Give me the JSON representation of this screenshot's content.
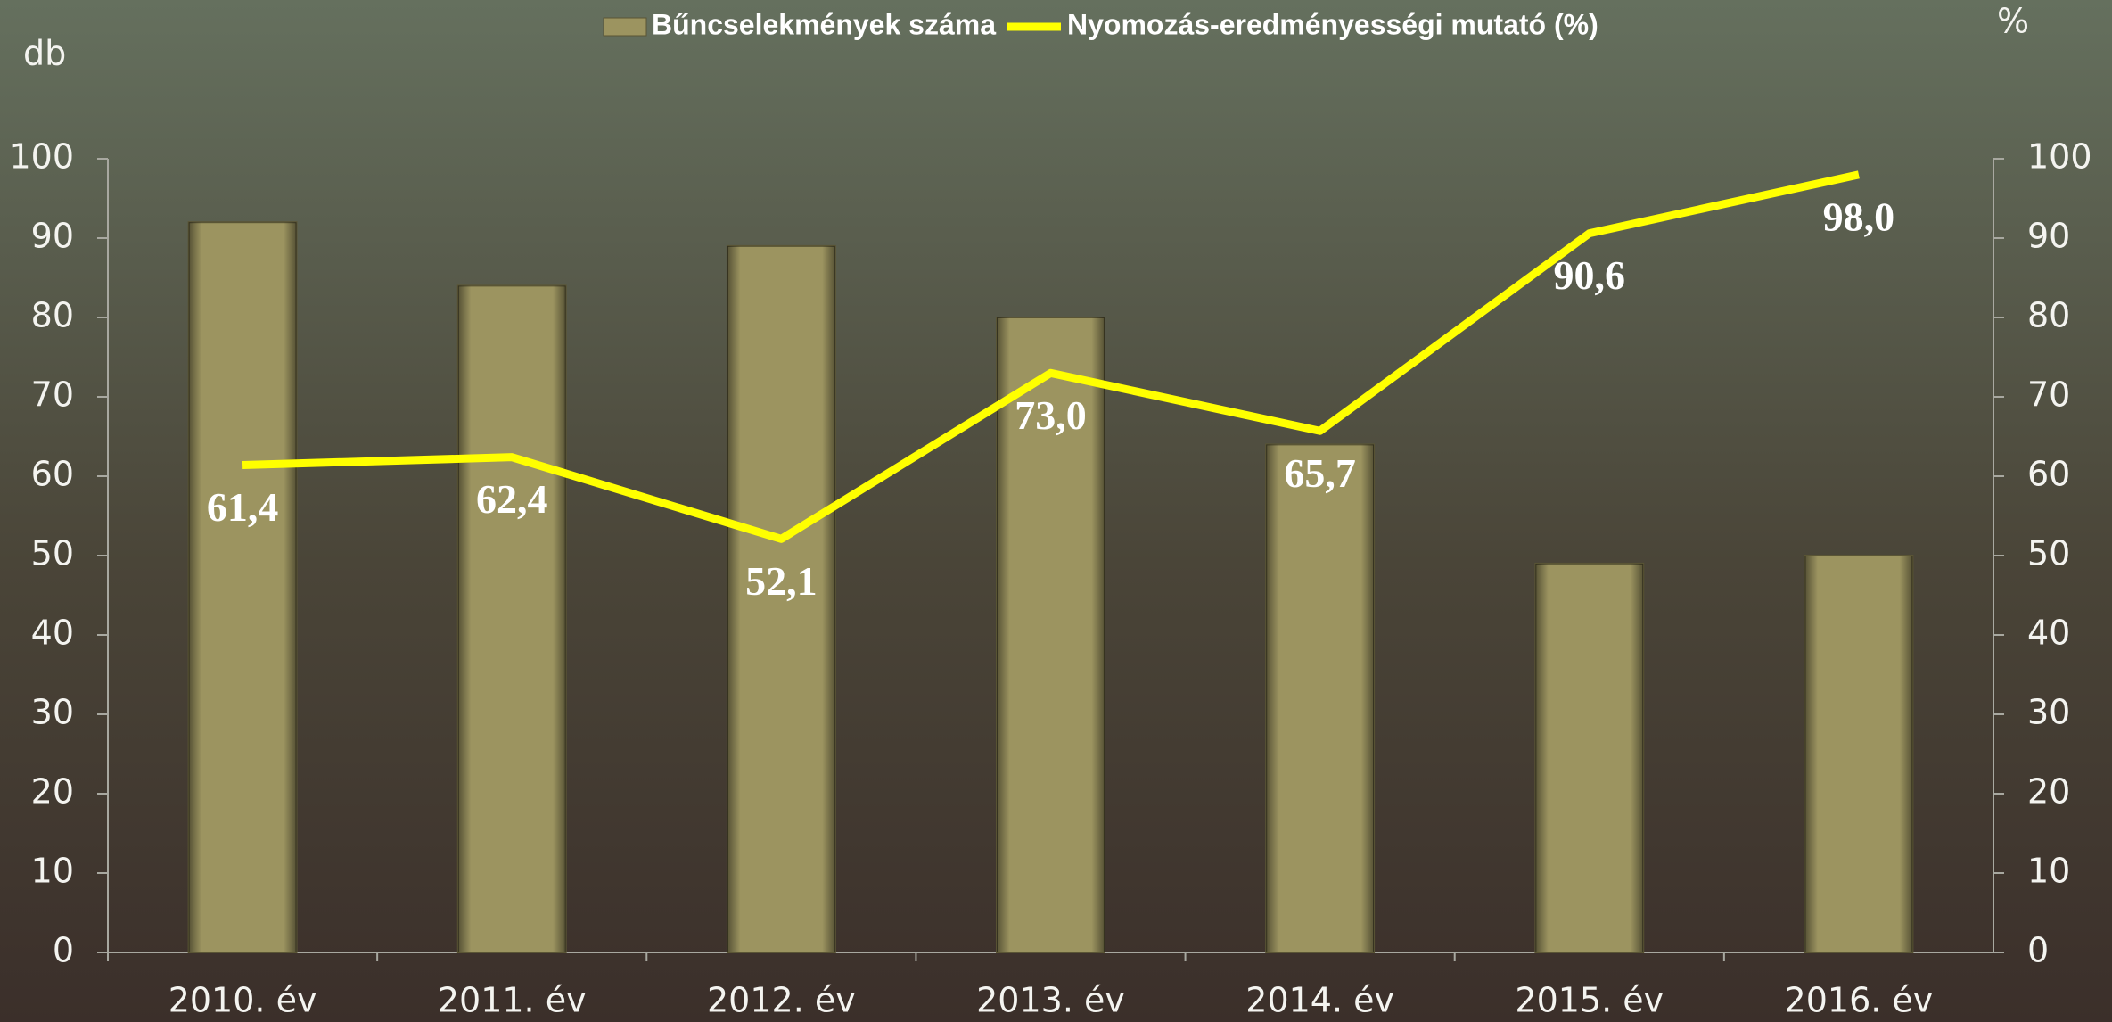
{
  "chart_data": {
    "type": "bar",
    "categories": [
      "2010. év",
      "2011. év",
      "2012. év",
      "2013. év",
      "2014. év",
      "2015. év",
      "2016. év"
    ],
    "series": [
      {
        "name": "Bűncselekmények száma",
        "type": "bar",
        "color": "#9c9460",
        "values": [
          92,
          84,
          89,
          80,
          64,
          49,
          50
        ]
      },
      {
        "name": "Nyomozás-eredményességi mutató (%)",
        "type": "line",
        "axis": "y2",
        "color": "#ffff00",
        "values": [
          61.4,
          62.4,
          52.1,
          73.0,
          65.7,
          90.6,
          98.0
        ],
        "value_labels": [
          "61,4",
          "62,4",
          "52,1",
          "73,0",
          "65,7",
          "90,6",
          "98,0"
        ]
      }
    ],
    "ylabel": "db",
    "y2label": "%",
    "ylim": [
      0,
      100
    ],
    "yticks": [
      0,
      10,
      20,
      30,
      40,
      50,
      60,
      70,
      80,
      90,
      100
    ],
    "y2lim": [
      0,
      100
    ],
    "y2ticks": [
      0,
      10,
      20,
      30,
      40,
      50,
      60,
      70,
      80,
      90,
      100
    ],
    "legend": "top",
    "grid": false
  }
}
